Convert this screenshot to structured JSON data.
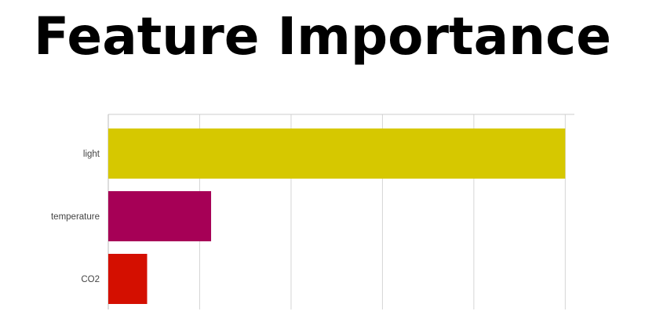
{
  "title": "Feature Importance",
  "chart_data": {
    "type": "bar",
    "orientation": "horizontal",
    "categories": [
      "light",
      "temperature",
      "CO2"
    ],
    "values": [
      1.0,
      0.225,
      0.085
    ],
    "colors": [
      "#d6c800",
      "#a60056",
      "#d40f00"
    ],
    "xlim": [
      0,
      1.02
    ],
    "grid": true,
    "legend": "none"
  }
}
